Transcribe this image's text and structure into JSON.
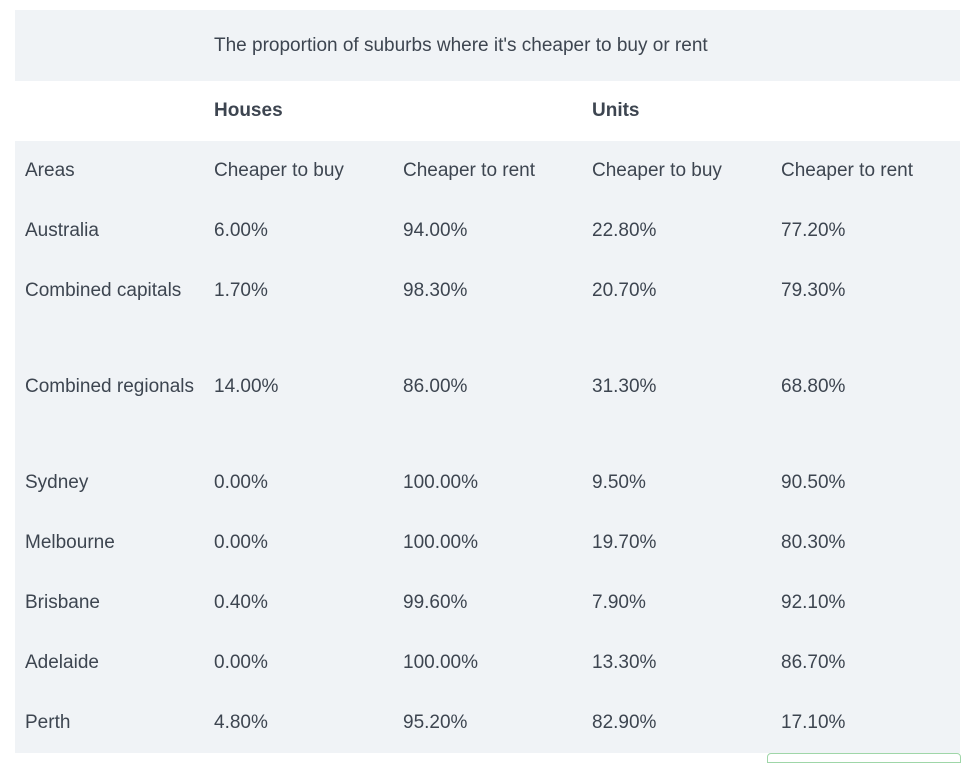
{
  "table": {
    "caption": "The proportion of suburbs where it's cheaper to buy or rent",
    "groups": {
      "houses": "Houses",
      "units": "Units"
    },
    "headers": [
      "Areas",
      "Cheaper to buy",
      "Cheaper to rent",
      "Cheaper to buy",
      "Cheaper to rent"
    ],
    "rows": [
      [
        "Australia",
        "6.00%",
        "94.00%",
        "22.80%",
        "77.20%"
      ],
      [
        "Combined capitals",
        "1.70%",
        "98.30%",
        "20.70%",
        "79.30%"
      ],
      [
        "Combined regionals",
        "14.00%",
        "86.00%",
        "31.30%",
        "68.80%"
      ],
      [
        "Sydney",
        "0.00%",
        "100.00%",
        "9.50%",
        "90.50%"
      ],
      [
        "Melbourne",
        "0.00%",
        "100.00%",
        "19.70%",
        "80.30%"
      ],
      [
        "Brisbane",
        "0.40%",
        "99.60%",
        "7.90%",
        "92.10%"
      ],
      [
        "Adelaide",
        "0.00%",
        "100.00%",
        "13.30%",
        "86.70%"
      ],
      [
        "Perth",
        "4.80%",
        "95.20%",
        "82.90%",
        "17.10%"
      ]
    ]
  },
  "colors": {
    "row_shade": "#f0f3f6",
    "text": "#3d4550",
    "accent_border": "#9fd6a8"
  }
}
